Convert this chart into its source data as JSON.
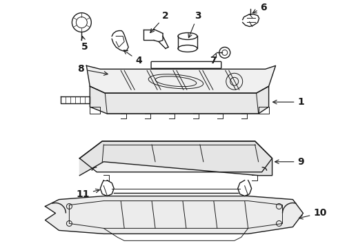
{
  "bg_color": "#ffffff",
  "line_color": "#1a1a1a",
  "fig_width": 4.9,
  "fig_height": 3.6,
  "dpi": 100,
  "font_size": 10,
  "font_size_small": 9
}
